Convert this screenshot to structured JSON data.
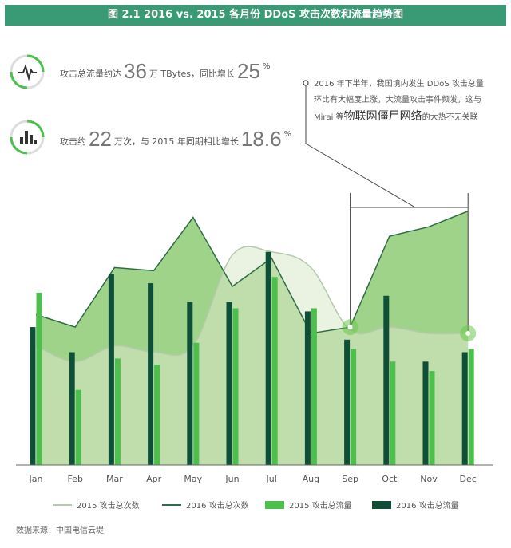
{
  "title": "图 2.1 2016 vs. 2015 各月份 DDoS 攻击次数和流量趋势图",
  "stats": [
    {
      "prefix": "攻击总流量约达",
      "value": "36",
      "mid": "万 TBytes，同比增长",
      "pct": "25",
      "suffix": "%",
      "icon": "pulse-icon"
    },
    {
      "prefix": "攻击约",
      "value": "22",
      "mid": "万次，与 2015 年同期相比增长",
      "pct": "18.6",
      "suffix": "%",
      "icon": "bar-chart-icon"
    }
  ],
  "note": {
    "line1": "2016 年下半年，我国境内发生 DDoS 攻击总量",
    "line2": "环比有大幅度上涨，大流量攻击事件频发，这与",
    "line3_a": "Mirai 等",
    "line3_em": "物联网僵尸网络",
    "line3_b": "的大热不无关联"
  },
  "source": "数据来源：中国电信云堤",
  "colors": {
    "header": "#3a9a76",
    "area2015_fill": "#d8e8c8",
    "area2015_line": "#b6c9ad",
    "area2016_fill": "#9fd38a",
    "area2016_line": "#2f6b45",
    "bar2015": "#4cbf4c",
    "bar2016": "#0f4f38"
  },
  "chart_data": {
    "type": "bar",
    "categories": [
      "Jan",
      "Feb",
      "Mar",
      "Apr",
      "May",
      "Jun",
      "Jul",
      "Aug",
      "Sep",
      "Oct",
      "Nov",
      "Dec"
    ],
    "series": [
      {
        "name": "2015 攻击总次数",
        "kind": "area",
        "values": [
          38,
          33,
          38,
          36,
          38,
          67,
          68,
          63,
          43,
          44,
          42,
          42
        ]
      },
      {
        "name": "2016 攻击总次数",
        "kind": "area",
        "values": [
          48,
          44,
          63,
          62,
          79,
          57,
          66,
          42,
          44,
          73,
          76,
          81
        ]
      },
      {
        "name": "2015 攻击总流量",
        "kind": "bar",
        "values": [
          55,
          24,
          34,
          32,
          39,
          50,
          60,
          50,
          37,
          33,
          30,
          37
        ]
      },
      {
        "name": "2016 攻击总流量",
        "kind": "bar",
        "values": [
          44,
          36,
          61,
          58,
          52,
          52,
          68,
          49,
          40,
          54,
          33,
          36
        ]
      }
    ],
    "ylim": [
      0,
      100
    ]
  }
}
